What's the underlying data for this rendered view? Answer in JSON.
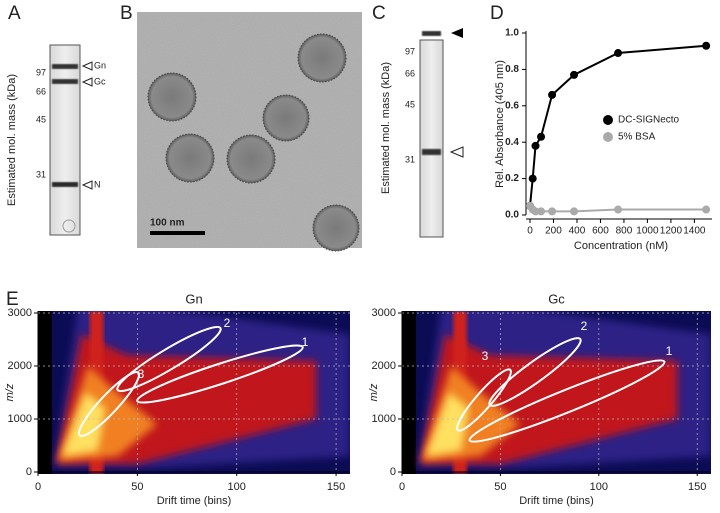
{
  "figure": {
    "panels": [
      {
        "letter": "A",
        "ylabel": "Estimated mol. mass (kDa)",
        "markers": [
          "97",
          "66",
          "45",
          "31"
        ],
        "bands": [
          "Gn",
          "Gc",
          "N"
        ]
      },
      {
        "letter": "B",
        "scale_bar": "100 nm"
      },
      {
        "letter": "C",
        "ylabel": "Estimated mol. mass (kDa)",
        "markers": [
          "97",
          "66",
          "45",
          "31"
        ]
      },
      {
        "letter": "D"
      },
      {
        "letter": "E"
      }
    ]
  },
  "chart_data": [
    {
      "type": "line",
      "x": [
        0,
        23,
        47,
        94,
        188,
        375,
        750,
        1500
      ],
      "series": [
        {
          "name": "DC-SIGNecto",
          "color": "#000000",
          "values": [
            0.05,
            0.2,
            0.38,
            0.43,
            0.66,
            0.77,
            0.89,
            0.93
          ]
        },
        {
          "name": "5% BSA",
          "color": "#aaaaaa",
          "values": [
            0.05,
            0.03,
            0.02,
            0.02,
            0.02,
            0.02,
            0.03,
            0.03
          ]
        }
      ],
      "xlabel": "Concentration (nM)",
      "ylabel": "Rel. Absorbance (405 nm)",
      "xlim": [
        0,
        1550
      ],
      "ylim": [
        0,
        1
      ],
      "xticks": [
        0,
        200,
        400,
        600,
        800,
        1000,
        1200,
        1400
      ],
      "yticks": [
        {
          "value": 0,
          "label": "0.0"
        },
        0.2,
        0.4,
        0.6,
        0.8,
        {
          "value": 1,
          "label": "1.0"
        }
      ],
      "legend": "right"
    },
    {
      "type": "heatmap",
      "title": "Gn",
      "xlabel": "Drift time (bins)",
      "ylabel": "m/z",
      "xlim": [
        0,
        157
      ],
      "ylim": [
        0,
        3000
      ],
      "xticks": [
        0,
        50,
        100,
        150
      ],
      "yticks": [
        0,
        1000,
        2000,
        3000
      ],
      "annotations": [
        "1",
        "2",
        "3"
      ],
      "grid": true
    },
    {
      "type": "heatmap",
      "title": "Gc",
      "xlabel": "Drift time (bins)",
      "ylabel": "m/z",
      "xlim": [
        0,
        157
      ],
      "ylim": [
        0,
        3000
      ],
      "xticks": [
        0,
        50,
        100,
        150
      ],
      "yticks": [
        0,
        1000,
        2000,
        3000
      ],
      "annotations": [
        "1",
        "2",
        "3"
      ],
      "grid": true
    }
  ]
}
